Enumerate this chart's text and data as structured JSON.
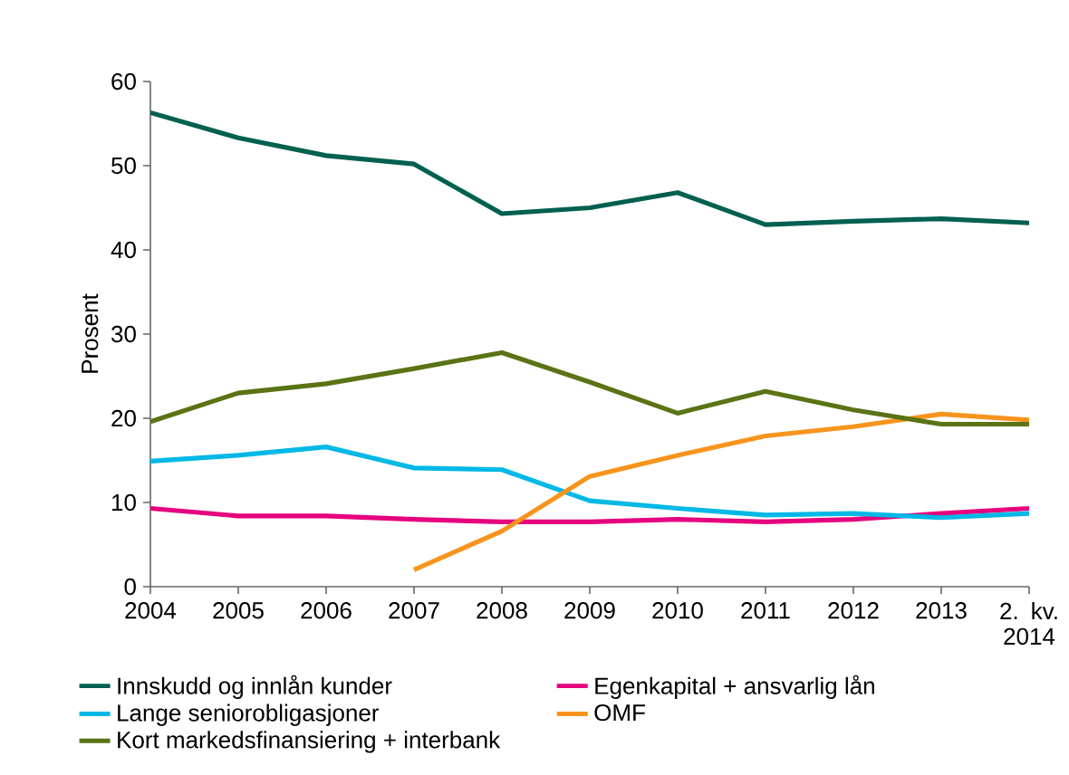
{
  "chart_data": {
    "type": "line",
    "ylabel": "Prosent",
    "categories": [
      "2004",
      "2005",
      "2006",
      "2007",
      "2008",
      "2009",
      "2010",
      "2011",
      "2012",
      "2013",
      "2. kv. 2014"
    ],
    "series": [
      {
        "name": "Innskudd og innlån kunder",
        "color": "#006050",
        "values": [
          56.3,
          53.3,
          51.2,
          50.2,
          44.3,
          45.0,
          46.8,
          43.0,
          43.4,
          43.7,
          43.2
        ]
      },
      {
        "name": "Egenkapital + ansvarlig lån",
        "color": "#e6007e",
        "values": [
          9.3,
          8.4,
          8.4,
          8.0,
          7.7,
          7.7,
          8.0,
          7.7,
          8.0,
          8.7,
          9.3
        ]
      },
      {
        "name": "Lange seniorobligasjoner",
        "color": "#00b8e6",
        "values": [
          14.9,
          15.6,
          16.6,
          14.1,
          13.9,
          10.2,
          9.3,
          8.5,
          8.7,
          8.2,
          8.7
        ]
      },
      {
        "name": "OMF",
        "color": "#f7941d",
        "values": [
          null,
          null,
          null,
          2.0,
          6.6,
          13.1,
          15.6,
          17.9,
          19.0,
          20.5,
          19.8
        ]
      },
      {
        "name": "Kort markedsfinansiering + interbank",
        "color": "#5a7314",
        "values": [
          19.6,
          23.0,
          24.1,
          25.9,
          27.8,
          24.3,
          20.6,
          23.2,
          21.0,
          19.3,
          19.3
        ]
      }
    ],
    "ylim": [
      0,
      60
    ],
    "yticks": [
      0,
      10,
      20,
      30,
      40,
      50,
      60
    ],
    "grid": false,
    "legend": "bottom",
    "marker": "none",
    "line_style": "solid"
  }
}
